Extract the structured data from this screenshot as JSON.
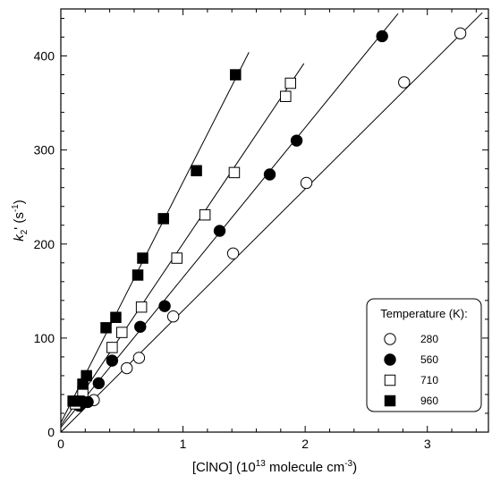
{
  "chart_data": {
    "type": "scatter",
    "xlabel_main": "[ClNO] (10",
    "xlabel_exp": "13",
    "xlabel_tail": " molecule cm",
    "xlabel_unit_exp": "-3",
    "xlabel_close": ")",
    "ylabel_k": "k",
    "ylabel_sub": "2",
    "ylabel_mid": "' (s",
    "ylabel_exp": "-1",
    "ylabel_close": ")",
    "xlim": [
      0,
      3.5
    ],
    "ylim": [
      0,
      450
    ],
    "x_ticks": [
      0,
      1,
      2,
      3
    ],
    "y_ticks": [
      0,
      100,
      200,
      300,
      400
    ],
    "grid": false,
    "legend": {
      "title": "Temperature (K):",
      "placement": "bottom-right"
    },
    "series": [
      {
        "name": "280",
        "marker": "circle-open",
        "points": [
          [
            0.27,
            34
          ],
          [
            0.54,
            68
          ],
          [
            0.64,
            79
          ],
          [
            0.92,
            123
          ],
          [
            1.41,
            190
          ],
          [
            2.01,
            265
          ],
          [
            2.81,
            372
          ],
          [
            3.27,
            424
          ]
        ],
        "fit": [
          [
            0,
            0
          ],
          [
            3.45,
            446
          ]
        ]
      },
      {
        "name": "560",
        "marker": "circle-filled",
        "points": [
          [
            0.15,
            28
          ],
          [
            0.22,
            32
          ],
          [
            0.31,
            52
          ],
          [
            0.42,
            76
          ],
          [
            0.65,
            112
          ],
          [
            0.85,
            134
          ],
          [
            1.3,
            214
          ],
          [
            1.71,
            274
          ],
          [
            1.93,
            310
          ],
          [
            2.63,
            421
          ]
        ],
        "fit": [
          [
            0,
            5
          ],
          [
            2.76,
            445
          ]
        ]
      },
      {
        "name": "710",
        "marker": "square-open",
        "points": [
          [
            0.12,
            30
          ],
          [
            0.18,
            43
          ],
          [
            0.42,
            90
          ],
          [
            0.5,
            106
          ],
          [
            0.66,
            133
          ],
          [
            0.95,
            185
          ],
          [
            1.18,
            231
          ],
          [
            1.42,
            276
          ],
          [
            1.84,
            357
          ],
          [
            1.88,
            371
          ]
        ],
        "fit": [
          [
            0,
            7
          ],
          [
            1.99,
            392
          ]
        ]
      },
      {
        "name": "960",
        "marker": "square-filled",
        "points": [
          [
            0.1,
            33
          ],
          [
            0.15,
            33
          ],
          [
            0.18,
            51
          ],
          [
            0.21,
            60
          ],
          [
            0.37,
            111
          ],
          [
            0.45,
            122
          ],
          [
            0.63,
            167
          ],
          [
            0.67,
            185
          ],
          [
            0.84,
            227
          ],
          [
            1.11,
            278
          ],
          [
            1.43,
            380
          ]
        ],
        "fit": [
          [
            0,
            10
          ],
          [
            1.54,
            404
          ]
        ]
      }
    ]
  }
}
